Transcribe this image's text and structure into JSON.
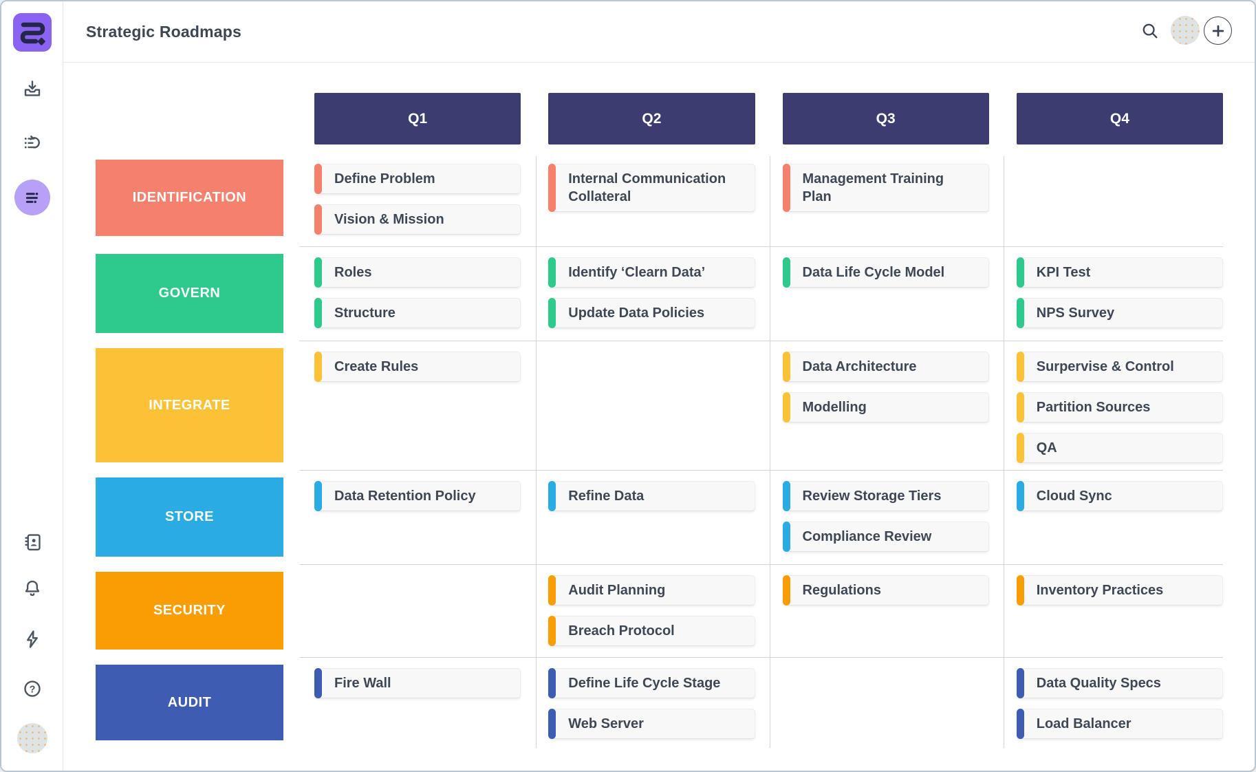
{
  "header": {
    "title": "Strategic Roadmaps",
    "icons": [
      "search-icon",
      "account-avatar",
      "add-button"
    ]
  },
  "sidebar": {
    "icons": [
      "app-logo",
      "import-tray-icon",
      "backlog-list-icon",
      "swimlane-view-icon",
      "contacts-icon",
      "notifications-bell-icon",
      "activity-bolt-icon",
      "help-icon",
      "user-avatar"
    ],
    "active_icon": "swimlane-view-icon"
  },
  "colors": {
    "brand_purple": "#8a63f2",
    "active_icon_bg": "#b6a1f6",
    "quarter_header_bg": "#3b3d71",
    "card_bg": "#f8f8f8",
    "divider": "#d5d5d5"
  },
  "board": {
    "columns": [
      "Q1",
      "Q2",
      "Q3",
      "Q4"
    ],
    "rows": [
      {
        "label": "IDENTIFICATION",
        "color": "#f4806d",
        "cells": [
          [
            "Define Problem",
            "Vision & Mission"
          ],
          [
            "Internal Communication Collateral"
          ],
          [
            "Management Training Plan"
          ],
          []
        ]
      },
      {
        "label": "GOVERN",
        "color": "#2dca8c",
        "cells": [
          [
            "Roles",
            "Structure"
          ],
          [
            "Identify ‘Clearn Data’",
            "Update Data Policies"
          ],
          [
            "Data Life Cycle Model"
          ],
          [
            "KPI Test",
            "NPS Survey"
          ]
        ]
      },
      {
        "label": "INTEGRATE",
        "color": "#fcc237",
        "cells": [
          [
            "Create Rules"
          ],
          [],
          [
            "Data Architecture",
            "Modelling"
          ],
          [
            "Surpervise & Control",
            "Partition Sources",
            "QA"
          ]
        ]
      },
      {
        "label": "STORE",
        "color": "#2aabe2",
        "cells": [
          [
            "Data Retention Policy"
          ],
          [
            "Refine Data"
          ],
          [
            "Review Storage Tiers",
            "Compliance Review"
          ],
          [
            "Cloud Sync"
          ]
        ]
      },
      {
        "label": "SECURITY",
        "color": "#f89e04",
        "cells": [
          [],
          [
            "Audit Planning",
            "Breach Protocol"
          ],
          [
            "Regulations"
          ],
          [
            "Inventory Practices"
          ]
        ]
      },
      {
        "label": "AUDIT",
        "color": "#3d5cb2",
        "cells": [
          [
            "Fire Wall"
          ],
          [
            "Define Life Cycle Stage",
            "Web Server"
          ],
          [],
          [
            "Data Quality Specs",
            "Load Balancer"
          ]
        ]
      }
    ]
  }
}
